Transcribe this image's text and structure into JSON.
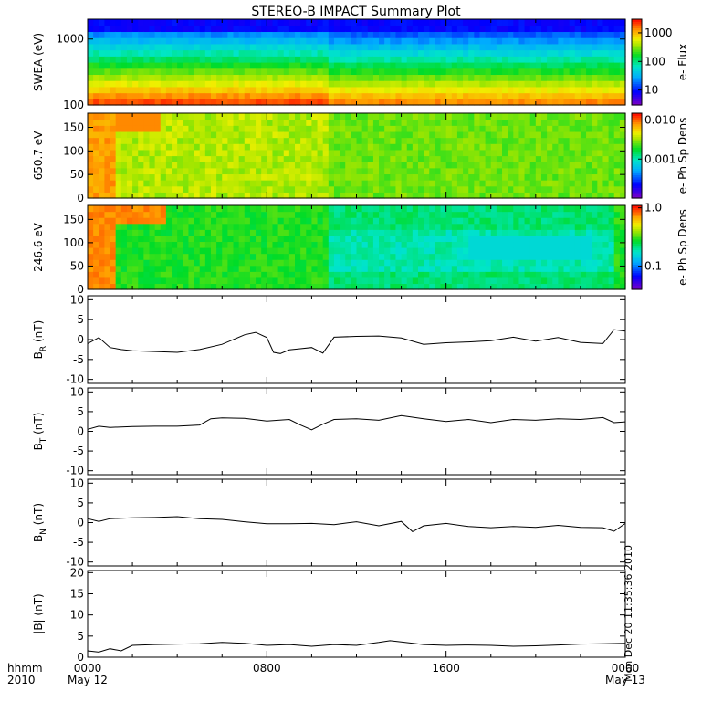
{
  "chart_data": {
    "title": "STEREO-B IMPACT Summary Plot",
    "x_ticks": [
      "0000",
      "0800",
      "1600",
      "0000"
    ],
    "x_dates": [
      "May 12",
      "",
      "",
      "May 13"
    ],
    "x_label_left": [
      "hhmm",
      "2010"
    ],
    "x_range_hours": [
      0,
      24
    ],
    "footnote": "Mon Dec 20 11:35:36 2010",
    "panels": [
      {
        "type": "heatmap",
        "ylabel": "SWEA (eV)",
        "y_scale": "log",
        "ylim": [
          100,
          2000
        ],
        "y_ticks": [
          "100",
          "1000"
        ],
        "colorbar": {
          "label": "e- Flux",
          "scale": "log",
          "range": [
            3,
            3000
          ],
          "ticks": [
            "10",
            "100",
            "1000"
          ]
        },
        "description_levels_by_band_low_to_high_energy": [
          2800,
          900,
          250,
          60,
          15,
          4
        ]
      },
      {
        "type": "heatmap",
        "ylabel": "650.7 eV",
        "ylim": [
          0,
          180
        ],
        "y_ticks": [
          "0",
          "50",
          "100",
          "150"
        ],
        "colorbar": {
          "label": "e- Ph Sp Dens",
          "scale": "log",
          "range": [
            0.0001,
            0.015
          ],
          "ticks": [
            "0.001",
            "0.010"
          ]
        }
      },
      {
        "type": "heatmap",
        "ylabel": "246.6 eV",
        "ylim": [
          0,
          180
        ],
        "y_ticks": [
          "0",
          "50",
          "100",
          "150"
        ],
        "colorbar": {
          "label": "e- Ph Sp Dens",
          "scale": "log",
          "range": [
            0.04,
            1.1
          ],
          "ticks": [
            "0.1",
            "1.0"
          ]
        }
      },
      {
        "type": "line",
        "ylabel_main": "B",
        "ylabel_sub": "R",
        "ylabel_unit": "(nT)",
        "ylim": [
          -11,
          11
        ],
        "y_ticks": [
          "-10",
          "-5",
          "0",
          "5",
          "10"
        ],
        "x": [
          0,
          0.5,
          1,
          1.5,
          2,
          3,
          4,
          5,
          6,
          7,
          7.5,
          8,
          8.3,
          8.6,
          9,
          10,
          10.5,
          11,
          12,
          13,
          14,
          15,
          16,
          17,
          18,
          19,
          20,
          21,
          22,
          23,
          23.5,
          24
        ],
        "y": [
          -1,
          0.5,
          -2,
          -2.5,
          -2.8,
          -3,
          -3.2,
          -2.5,
          -1.2,
          1.2,
          1.8,
          0.5,
          -3.2,
          -3.5,
          -2.6,
          -2,
          -3.4,
          0.6,
          0.8,
          0.9,
          0.4,
          -1.2,
          -0.8,
          -0.6,
          -0.3,
          0.6,
          -0.4,
          0.5,
          -0.7,
          -1,
          2.5,
          2.1
        ]
      },
      {
        "type": "line",
        "ylabel_main": "B",
        "ylabel_sub": "T",
        "ylabel_unit": "(nT)",
        "ylim": [
          -11,
          11
        ],
        "y_ticks": [
          "-10",
          "-5",
          "0",
          "5",
          "10"
        ],
        "x": [
          0,
          0.5,
          1,
          2,
          3,
          4,
          5,
          5.5,
          6,
          7,
          8,
          9,
          9.5,
          10,
          10.5,
          11,
          12,
          13,
          14,
          15,
          16,
          17,
          18,
          19,
          20,
          21,
          22,
          23,
          23.5,
          24
        ],
        "y": [
          0.5,
          1.3,
          1,
          1.2,
          1.3,
          1.3,
          1.6,
          3.2,
          3.4,
          3.3,
          2.6,
          3,
          1.6,
          0.4,
          1.8,
          3,
          3.2,
          2.8,
          4,
          3.2,
          2.5,
          3,
          2.2,
          3,
          2.8,
          3.2,
          3,
          3.5,
          2.2,
          2.4
        ]
      },
      {
        "type": "line",
        "ylabel_main": "B",
        "ylabel_sub": "N",
        "ylabel_unit": "(nT)",
        "ylim": [
          -11,
          11
        ],
        "y_ticks": [
          "-10",
          "-5",
          "0",
          "5",
          "10"
        ],
        "x": [
          0,
          0.5,
          1,
          2,
          3,
          4,
          5,
          6,
          7,
          8,
          9,
          10,
          11,
          12,
          13,
          14,
          14.5,
          15,
          16,
          17,
          18,
          19,
          20,
          21,
          22,
          23,
          23.5,
          24
        ],
        "y": [
          1,
          0.3,
          1,
          1.2,
          1.3,
          1.5,
          1,
          0.8,
          0.2,
          -0.3,
          -0.3,
          -0.2,
          -0.5,
          0.2,
          -0.8,
          0.3,
          -2.3,
          -0.8,
          -0.2,
          -1,
          -1.3,
          -1,
          -1.2,
          -0.7,
          -1.2,
          -1.3,
          -2.2,
          -0.2
        ]
      },
      {
        "type": "line",
        "ylabel_main": "|B|",
        "ylabel_sub": "",
        "ylabel_unit": "(nT)",
        "ylim": [
          0,
          20.5
        ],
        "y_ticks": [
          "0",
          "5",
          "10",
          "15",
          "20"
        ],
        "x": [
          0,
          0.5,
          1,
          1.5,
          2,
          3,
          4,
          5,
          6,
          7,
          8,
          9,
          10,
          11,
          12,
          13,
          13.5,
          14,
          15,
          16,
          17,
          18,
          19,
          20,
          21,
          22,
          23,
          24
        ],
        "y": [
          1.5,
          1.2,
          2,
          1.5,
          2.8,
          3,
          3.1,
          3.2,
          3.5,
          3.3,
          2.8,
          3,
          2.6,
          3,
          2.8,
          3.5,
          3.9,
          3.6,
          3,
          2.8,
          2.9,
          2.8,
          2.6,
          2.7,
          2.9,
          3.1,
          3.2,
          3.3
        ]
      }
    ]
  }
}
